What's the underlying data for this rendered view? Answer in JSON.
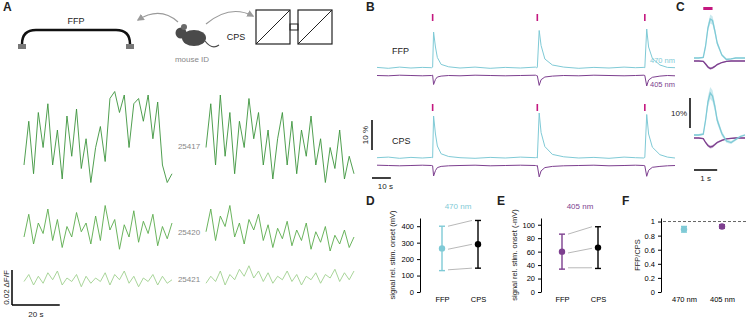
{
  "chart_data": [
    {
      "label": "A",
      "type": "line",
      "annotations": [
        "FFP",
        "CPS",
        "mouse ID"
      ],
      "x": [
        0,
        2,
        4,
        6,
        8,
        10,
        12,
        14,
        16,
        18,
        20,
        22,
        24,
        26,
        28,
        30,
        32,
        34,
        36,
        38,
        40,
        42,
        44,
        46,
        48,
        50,
        52,
        54,
        56,
        58,
        60,
        62
      ],
      "series": [
        {
          "name": "25417",
          "color": "#3c943c",
          "ffp": [
            0.02,
            0.045,
            0.015,
            0.05,
            0.03,
            0.055,
            0.02,
            0.04,
            0.012,
            0.048,
            0.025,
            0.052,
            0.018,
            0.035,
            0.01,
            0.03,
            0.042,
            0.022,
            0.058,
            0.062,
            0.05,
            0.06,
            0.03,
            0.055,
            0.058,
            0.045,
            0.06,
            0.035,
            0.056,
            0.02,
            0.01,
            0.015
          ],
          "cps": [
            0.03,
            0.055,
            0.02,
            0.06,
            0.025,
            0.05,
            0.015,
            0.045,
            0.03,
            0.058,
            0.035,
            0.05,
            0.02,
            0.04,
            0.012,
            0.035,
            0.05,
            0.02,
            0.045,
            0.015,
            0.04,
            0.025,
            0.048,
            0.02,
            0.035,
            0.01,
            0.03,
            0.018,
            0.04,
            0.012,
            0.025,
            0.015
          ]
        },
        {
          "name": "25420",
          "color": "#5aac4c",
          "ffp": [
            0.012,
            0.025,
            0.008,
            0.02,
            0.014,
            0.028,
            0.01,
            0.022,
            0.006,
            0.018,
            0.012,
            0.026,
            0.015,
            0.02,
            0.008,
            0.024,
            0.01,
            0.03,
            0.016,
            0.022,
            0.005,
            0.019,
            0.012,
            0.027,
            0.009,
            0.021,
            0.014,
            0.025,
            0.007,
            0.018,
            0.011,
            0.02
          ],
          "cps": [
            0.015,
            0.028,
            0.01,
            0.024,
            0.018,
            0.03,
            0.012,
            0.02,
            0.008,
            0.022,
            0.016,
            0.025,
            0.01,
            0.019,
            0.006,
            0.017,
            0.011,
            0.021,
            0.007,
            0.016,
            0.01,
            0.02,
            0.005,
            0.015,
            0.009,
            0.018,
            0.004,
            0.013,
            0.008,
            0.016,
            0.006,
            0.012
          ]
        },
        {
          "name": "25421",
          "color": "#9fd08f",
          "ffp": [
            0.006,
            0.01,
            0.004,
            0.009,
            0.005,
            0.011,
            0.007,
            0.012,
            0.004,
            0.008,
            0.006,
            0.01,
            0.003,
            0.009,
            0.005,
            0.008,
            0.006,
            0.011,
            0.004,
            0.01,
            0.007,
            0.012,
            0.005,
            0.009,
            0.003,
            0.008,
            0.006,
            0.01,
            0.004,
            0.009,
            0.005,
            0.007
          ],
          "cps": [
            0.005,
            0.009,
            0.006,
            0.012,
            0.004,
            0.01,
            0.007,
            0.013,
            0.009,
            0.015,
            0.008,
            0.012,
            0.006,
            0.011,
            0.005,
            0.009,
            0.007,
            0.012,
            0.006,
            0.01,
            0.004,
            0.009,
            0.007,
            0.011,
            0.005,
            0.01,
            0.008,
            0.013,
            0.006,
            0.011,
            0.007,
            0.012
          ]
        }
      ],
      "scale_bars": {
        "x": {
          "value": 20,
          "label": "20 s"
        },
        "y": {
          "value": 0.02,
          "label": "0.02 ΔF/F"
        }
      }
    },
    {
      "label": "B",
      "type": "line",
      "groups": [
        "FFP",
        "CPS"
      ],
      "x": [
        0,
        6,
        12,
        18,
        24,
        29,
        29.5,
        30,
        31,
        32,
        34,
        38,
        44,
        52,
        60,
        68,
        76,
        84,
        84.5,
        85,
        86,
        87,
        89,
        93,
        99,
        107,
        115,
        123,
        131,
        137,
        141.5,
        142,
        143,
        144,
        146,
        150,
        154,
        158
      ],
      "stim": {
        "times": [
          29.5,
          85,
          142
        ],
        "color": "#c4177f"
      },
      "series": [
        {
          "name": "470 nm",
          "color": "#7fcad6",
          "ffp": [
            0.2,
            -0.1,
            0.3,
            0,
            0.2,
            0.1,
            0.3,
            12,
            7,
            3.5,
            1.2,
            0.4,
            0,
            0.3,
            -0.1,
            0.2,
            0,
            0.3,
            0.1,
            0.2,
            12.5,
            7.5,
            3,
            1,
            0.3,
            -0.1,
            0.2,
            0,
            0.3,
            0.1,
            0.2,
            0.1,
            13,
            7,
            3.2,
            1,
            0.2,
            0.1
          ],
          "cps": [
            0.1,
            0.3,
            -0.1,
            0.2,
            0,
            0.2,
            0.1,
            14,
            8,
            4,
            1.4,
            0.5,
            0.1,
            -0.1,
            0.2,
            0,
            0.3,
            0.1,
            0.2,
            0,
            15,
            8.5,
            3.8,
            1.2,
            0.4,
            0,
            0.2,
            -0.1,
            0.3,
            0.1,
            0,
            0.2,
            14.5,
            8,
            3.6,
            1.1,
            0.3,
            0
          ]
        },
        {
          "name": "405 nm",
          "color": "#7d3f8f",
          "ffp": [
            -2.5,
            -2.6,
            -2.4,
            -2.5,
            -2.6,
            -2.5,
            -2.4,
            -5.5,
            -3.8,
            -3,
            -2.7,
            -2.5,
            -2.6,
            -2.4,
            -2.5,
            -2.6,
            -2.5,
            -2.4,
            -2.5,
            -2.6,
            -5.8,
            -3.9,
            -3,
            -2.7,
            -2.5,
            -2.6,
            -2.4,
            -2.5,
            -2.6,
            -2.5,
            -2.4,
            -2.5,
            -6,
            -4,
            -3.1,
            -2.7,
            -2.5,
            -2.6
          ],
          "cps": [
            -2.4,
            -2.5,
            -2.6,
            -2.5,
            -2.4,
            -2.5,
            -2.6,
            -6,
            -4.2,
            -3.2,
            -2.8,
            -2.6,
            -2.5,
            -2.4,
            -2.6,
            -2.5,
            -2.4,
            -2.5,
            -2.6,
            -2.5,
            -6.3,
            -4.3,
            -3.2,
            -2.8,
            -2.6,
            -2.5,
            -2.4,
            -2.6,
            -2.5,
            -2.4,
            -2.5,
            -2.6,
            -6.1,
            -4.1,
            -3.1,
            -2.8,
            -2.6,
            -2.5
          ]
        }
      ],
      "scale_bars": {
        "x": {
          "value": 10,
          "label": "10 s"
        },
        "y": {
          "value": 10,
          "label": "10 %"
        }
      }
    },
    {
      "label": "C",
      "type": "line",
      "x": [
        -0.4,
        -0.2,
        0,
        0.1,
        0.2,
        0.3,
        0.4,
        0.5,
        0.6,
        0.8,
        1,
        1.2,
        1.4,
        1.6,
        1.8
      ],
      "stim": {
        "x": [
          0,
          0.4
        ],
        "color": "#c4177f"
      },
      "series": [
        {
          "color": "#7fcad6",
          "ffp": [
            0,
            0,
            0.2,
            4,
            10,
            13,
            12.5,
            9,
            5,
            1,
            -0.5,
            -0.3,
            0,
            0,
            0
          ],
          "ffp_sem": [
            0.2,
            0.2,
            0.3,
            0.8,
            1.2,
            1.5,
            1.4,
            1.2,
            0.8,
            0.4,
            0.3,
            0.2,
            0.2,
            0.2,
            0.2
          ],
          "cps": [
            0,
            0,
            0.3,
            5,
            11,
            14,
            13,
            9.5,
            5,
            0.5,
            -2,
            -2.5,
            -1.5,
            -0.5,
            0
          ],
          "cps_sem": [
            0.3,
            0.3,
            0.4,
            1,
            1.8,
            2,
            1.9,
            1.6,
            1.2,
            0.8,
            0.6,
            0.5,
            0.4,
            0.3,
            0.3
          ]
        },
        {
          "color": "#7d3f8f",
          "ffp": [
            -1,
            -1,
            -1.1,
            -2,
            -3,
            -3.5,
            -3.3,
            -2.8,
            -2.2,
            -1.5,
            -1.1,
            -1,
            -1,
            -1,
            -1
          ],
          "ffp_sem": [
            0.2,
            0.2,
            0.2,
            0.3,
            0.4,
            0.4,
            0.4,
            0.3,
            0.3,
            0.2,
            0.2,
            0.2,
            0.2,
            0.2,
            0.2
          ],
          "cps": [
            -1,
            -1,
            -1.2,
            -2.5,
            -3.5,
            -4,
            -3.8,
            -3.2,
            -2.5,
            -1.8,
            -1.3,
            -1.1,
            -1,
            -1,
            -1
          ],
          "cps_sem": [
            0.2,
            0.2,
            0.2,
            0.3,
            0.4,
            0.5,
            0.5,
            0.4,
            0.3,
            0.3,
            0.2,
            0.2,
            0.2,
            0.2,
            0.2
          ]
        }
      ],
      "scale_bars": {
        "x": {
          "value": 1,
          "label": "1 s"
        },
        "y": {
          "value": 10,
          "label": "10%"
        }
      }
    },
    {
      "label": "D",
      "type": "errorbar",
      "title": "470 nm",
      "ylabel": "signal rel. stim. onset (mV)",
      "categories": [
        "FFP",
        "CPS"
      ],
      "values": [
        265,
        290
      ],
      "errors": [
        135,
        145
      ],
      "colors": [
        "#7fcad6",
        "#000000"
      ],
      "individual": [
        [
          400,
          435
        ],
        [
          260,
          290
        ],
        [
          135,
          145
        ]
      ],
      "ylim": [
        0,
        450
      ],
      "yticks": [
        0,
        100,
        200,
        300,
        400
      ]
    },
    {
      "label": "E",
      "type": "errorbar",
      "title": "405 nm",
      "ylabel": "signal rel. stim. onset (-mV)",
      "categories": [
        "FFP",
        "CPS"
      ],
      "values": [
        60,
        66
      ],
      "errors": [
        26,
        31
      ],
      "colors": [
        "#7d3f8f",
        "#000000"
      ],
      "individual": [
        [
          86,
          97
        ],
        [
          58,
          65
        ],
        [
          36,
          36
        ]
      ],
      "ylim": [
        0,
        110
      ],
      "yticks": [
        0,
        20,
        40,
        60,
        80,
        100
      ]
    },
    {
      "label": "F",
      "type": "errorbar",
      "ylabel": "FFP/CPS",
      "categories": [
        "470 nm",
        "405 nm"
      ],
      "values": [
        0.89,
        0.93
      ],
      "errors": [
        0.04,
        0.025
      ],
      "colors": [
        "#7fcad6",
        "#7d3f8f"
      ],
      "reference": 1,
      "ylim": [
        0,
        1.05
      ],
      "yticks": [
        0,
        0.2,
        0.4,
        0.6,
        0.8,
        1
      ]
    }
  ]
}
